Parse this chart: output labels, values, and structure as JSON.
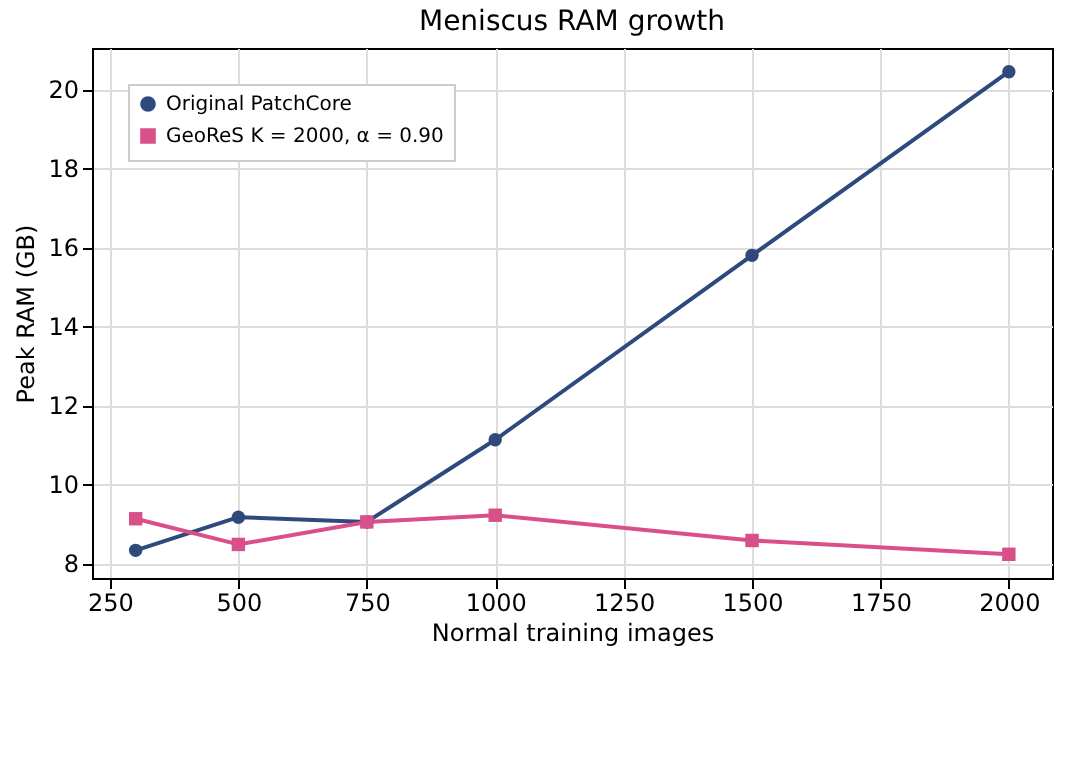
{
  "chart_data": {
    "type": "line",
    "title": "Meniscus RAM growth",
    "xlabel": "Normal training images",
    "ylabel": "Peak RAM (GB)",
    "x": [
      300,
      500,
      750,
      1000,
      1500,
      2000
    ],
    "series": [
      {
        "name": "Original PatchCore",
        "color": "#2e4a7d",
        "marker": "circle",
        "values": [
          8.33,
          9.17,
          9.05,
          11.13,
          15.8,
          20.45
        ]
      },
      {
        "name": "GeoReS K = 2000, α = 0.90",
        "color": "#d94f8a",
        "marker": "square",
        "values": [
          9.13,
          8.48,
          9.05,
          9.22,
          8.58,
          8.23
        ]
      }
    ],
    "xlim": [
      215,
      2084
    ],
    "xticks": [
      250,
      500,
      750,
      1000,
      1250,
      1500,
      1750,
      2000
    ],
    "ylim": [
      7.63,
      21.05
    ],
    "yticks": [
      8,
      10,
      12,
      14,
      16,
      18,
      20
    ],
    "grid": true,
    "legend": "top left",
    "line_style": "solid"
  }
}
